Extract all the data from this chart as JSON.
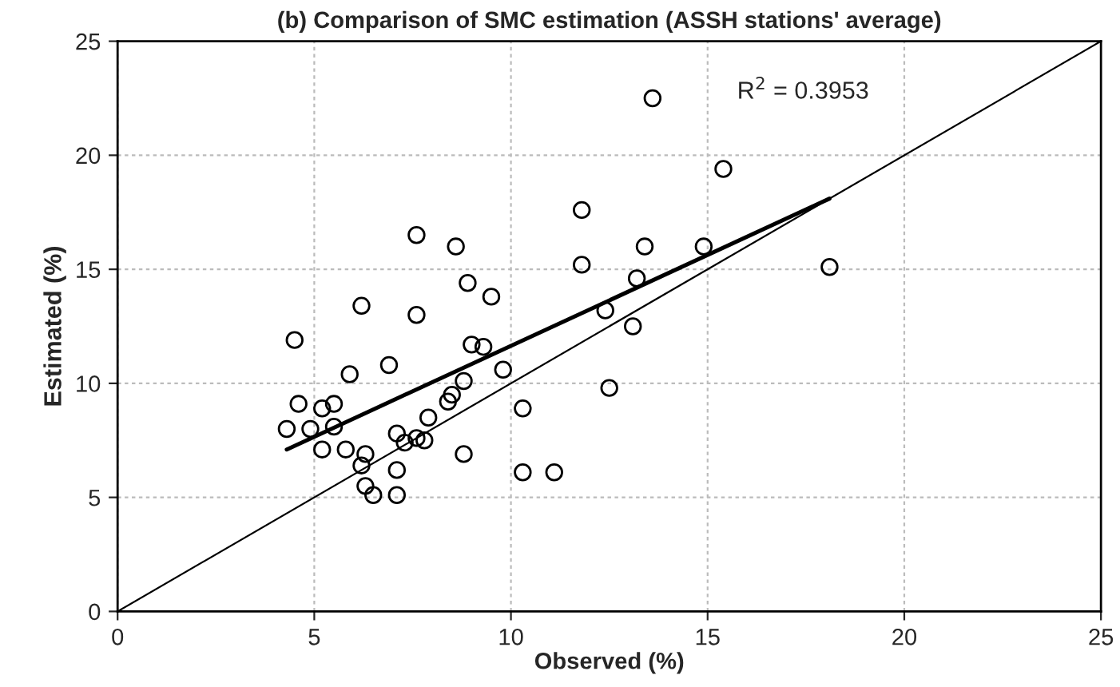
{
  "chart_data": {
    "type": "scatter",
    "title": "(b) Comparison of SMC estimation (ASSH stations' average)",
    "xlabel": "Observed (%)",
    "ylabel": "Estimated (%)",
    "series": [
      {
        "color": "#000000",
        "marker": "circle",
        "x": [
          4.3,
          4.5,
          4.6,
          4.9,
          5.2,
          5.2,
          5.5,
          5.5,
          5.8,
          5.9,
          6.2,
          6.2,
          6.3,
          6.3,
          6.5,
          6.9,
          7.1,
          7.1,
          7.1,
          7.3,
          7.6,
          7.6,
          7.6,
          7.8,
          7.9,
          8.4,
          8.5,
          8.6,
          8.8,
          8.8,
          8.9,
          9.0,
          9.3,
          9.5,
          9.8,
          10.3,
          10.3,
          11.1,
          11.8,
          11.8,
          12.4,
          12.5,
          13.1,
          13.2,
          13.4,
          13.6,
          14.9,
          15.4,
          18.1
        ],
        "values": [
          8.0,
          11.9,
          9.1,
          8.0,
          8.9,
          7.1,
          9.1,
          8.1,
          7.1,
          10.4,
          13.4,
          6.4,
          5.5,
          6.9,
          5.1,
          10.8,
          7.8,
          6.2,
          5.1,
          7.4,
          7.6,
          16.5,
          13.0,
          7.5,
          8.5,
          9.2,
          9.5,
          16.0,
          10.1,
          6.9,
          14.4,
          11.7,
          11.6,
          13.8,
          10.6,
          8.9,
          6.1,
          6.1,
          17.6,
          15.2,
          13.2,
          9.8,
          12.5,
          14.6,
          16.0,
          22.5,
          16.0,
          19.4,
          15.1
        ]
      },
      {
        "type": "line",
        "color": "#000000",
        "x": [
          4.3,
          18.1
        ],
        "values": [
          7.1,
          18.1
        ]
      },
      {
        "type": "line",
        "color": "#000000",
        "x": [
          0,
          25
        ],
        "values": [
          0,
          25
        ]
      }
    ],
    "annotations": [
      "R$^{2}$ = 0.3953"
    ],
    "xlim": [
      0,
      25
    ],
    "ylim": [
      0,
      25
    ],
    "xticks": [
      0,
      5,
      10,
      15,
      20,
      25
    ],
    "yticks": [
      0,
      5,
      10,
      15,
      20,
      25
    ],
    "grid": true,
    "line_style": "solid"
  }
}
